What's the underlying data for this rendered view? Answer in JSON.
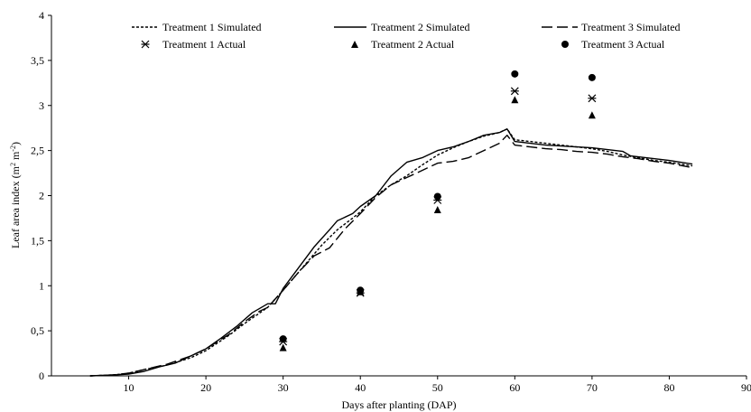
{
  "chart_data": {
    "type": "line",
    "title": "",
    "xlabel": "Days after planting (DAP)",
    "ylabel_text": "Leaf area index (m",
    "ylabel_sup1": "2",
    "ylabel_mid": " m",
    "ylabel_sup2": "-2",
    "ylabel_end": ")",
    "xlim": [
      0,
      90
    ],
    "ylim": [
      0,
      4
    ],
    "x_ticks": [
      10,
      20,
      30,
      40,
      50,
      60,
      70,
      80,
      90
    ],
    "y_ticks": [
      0,
      0.5,
      1,
      1.5,
      2,
      2.5,
      3,
      3.5,
      4
    ],
    "x_tick_labels": [
      "10",
      "20",
      "30",
      "40",
      "50",
      "60",
      "70",
      "80",
      "90"
    ],
    "y_tick_labels": [
      "0",
      "0,5",
      "1",
      "1,5",
      "2",
      "2,5",
      "3",
      "3,5",
      "4"
    ],
    "grid": false,
    "legend_position": "top",
    "series": [
      {
        "name": "Treatment 1 Simulated",
        "style": "dotted",
        "color": "#000000",
        "points": [
          [
            5,
            0
          ],
          [
            8,
            0.01
          ],
          [
            10,
            0.03
          ],
          [
            12,
            0.07
          ],
          [
            15,
            0.12
          ],
          [
            18,
            0.2
          ],
          [
            20,
            0.28
          ],
          [
            23,
            0.45
          ],
          [
            25,
            0.58
          ],
          [
            27,
            0.7
          ],
          [
            28,
            0.76
          ],
          [
            30,
            0.95
          ],
          [
            33,
            1.25
          ],
          [
            35,
            1.45
          ],
          [
            37,
            1.62
          ],
          [
            39,
            1.75
          ],
          [
            40,
            1.82
          ],
          [
            42,
            2.0
          ],
          [
            44,
            2.12
          ],
          [
            46,
            2.22
          ],
          [
            48,
            2.34
          ],
          [
            50,
            2.45
          ],
          [
            52,
            2.53
          ],
          [
            54,
            2.6
          ],
          [
            56,
            2.66
          ],
          [
            58,
            2.7
          ],
          [
            59,
            2.74
          ],
          [
            60,
            2.62
          ],
          [
            62,
            2.6
          ],
          [
            64,
            2.58
          ],
          [
            66,
            2.56
          ],
          [
            68,
            2.54
          ],
          [
            70,
            2.52
          ],
          [
            72,
            2.49
          ],
          [
            74,
            2.45
          ],
          [
            76,
            2.42
          ],
          [
            78,
            2.39
          ],
          [
            80,
            2.37
          ],
          [
            83,
            2.33
          ]
        ]
      },
      {
        "name": "Treatment 2 Simulated",
        "style": "solid",
        "color": "#000000",
        "points": [
          [
            5,
            0
          ],
          [
            8,
            0.01
          ],
          [
            10,
            0.02
          ],
          [
            12,
            0.05
          ],
          [
            14,
            0.1
          ],
          [
            16,
            0.14
          ],
          [
            18,
            0.22
          ],
          [
            20,
            0.3
          ],
          [
            22,
            0.42
          ],
          [
            24,
            0.55
          ],
          [
            26,
            0.7
          ],
          [
            28,
            0.8
          ],
          [
            29,
            0.8
          ],
          [
            30,
            0.97
          ],
          [
            32,
            1.2
          ],
          [
            34,
            1.43
          ],
          [
            36,
            1.62
          ],
          [
            37,
            1.72
          ],
          [
            39,
            1.8
          ],
          [
            40,
            1.88
          ],
          [
            42,
            2.0
          ],
          [
            44,
            2.22
          ],
          [
            46,
            2.37
          ],
          [
            48,
            2.42
          ],
          [
            50,
            2.5
          ],
          [
            52,
            2.54
          ],
          [
            54,
            2.6
          ],
          [
            56,
            2.67
          ],
          [
            58,
            2.7
          ],
          [
            59,
            2.74
          ],
          [
            60,
            2.6
          ],
          [
            62,
            2.58
          ],
          [
            64,
            2.56
          ],
          [
            66,
            2.55
          ],
          [
            68,
            2.54
          ],
          [
            70,
            2.53
          ],
          [
            72,
            2.51
          ],
          [
            74,
            2.49
          ],
          [
            75,
            2.44
          ],
          [
            78,
            2.41
          ],
          [
            80,
            2.39
          ],
          [
            83,
            2.35
          ]
        ]
      },
      {
        "name": "Treatment 3 Simulated",
        "style": "dashed",
        "color": "#000000",
        "points": [
          [
            5,
            0
          ],
          [
            8,
            0.01
          ],
          [
            10,
            0.03
          ],
          [
            12,
            0.07
          ],
          [
            15,
            0.13
          ],
          [
            18,
            0.22
          ],
          [
            20,
            0.3
          ],
          [
            23,
            0.46
          ],
          [
            25,
            0.6
          ],
          [
            27,
            0.72
          ],
          [
            28,
            0.76
          ],
          [
            30,
            0.95
          ],
          [
            32,
            1.15
          ],
          [
            34,
            1.33
          ],
          [
            36,
            1.42
          ],
          [
            38,
            1.63
          ],
          [
            40,
            1.8
          ],
          [
            42,
            1.98
          ],
          [
            44,
            2.12
          ],
          [
            46,
            2.2
          ],
          [
            48,
            2.28
          ],
          [
            50,
            2.36
          ],
          [
            52,
            2.38
          ],
          [
            54,
            2.42
          ],
          [
            56,
            2.5
          ],
          [
            58,
            2.58
          ],
          [
            59,
            2.67
          ],
          [
            60,
            2.56
          ],
          [
            62,
            2.54
          ],
          [
            64,
            2.52
          ],
          [
            66,
            2.51
          ],
          [
            68,
            2.49
          ],
          [
            70,
            2.48
          ],
          [
            72,
            2.46
          ],
          [
            74,
            2.43
          ],
          [
            76,
            2.41
          ],
          [
            78,
            2.38
          ],
          [
            80,
            2.36
          ],
          [
            83,
            2.31
          ]
        ]
      }
    ],
    "actual_series": [
      {
        "name": "Treatment 1 Actual",
        "marker": "asterisk",
        "color": "#000000",
        "points": [
          [
            30,
            0.38
          ],
          [
            40,
            0.92
          ],
          [
            50,
            1.95
          ],
          [
            60,
            3.16
          ],
          [
            70,
            3.08
          ]
        ]
      },
      {
        "name": "Treatment 2 Actual",
        "marker": "triangle",
        "color": "#000000",
        "points": [
          [
            30,
            0.31
          ],
          [
            40,
            0.93
          ],
          [
            50,
            1.84
          ],
          [
            60,
            3.06
          ],
          [
            70,
            2.89
          ]
        ]
      },
      {
        "name": "Treatment 3 Actual",
        "marker": "circle",
        "color": "#000000",
        "points": [
          [
            30,
            0.41
          ],
          [
            40,
            0.95
          ],
          [
            50,
            1.99
          ],
          [
            60,
            3.35
          ],
          [
            70,
            3.31
          ]
        ]
      }
    ]
  }
}
